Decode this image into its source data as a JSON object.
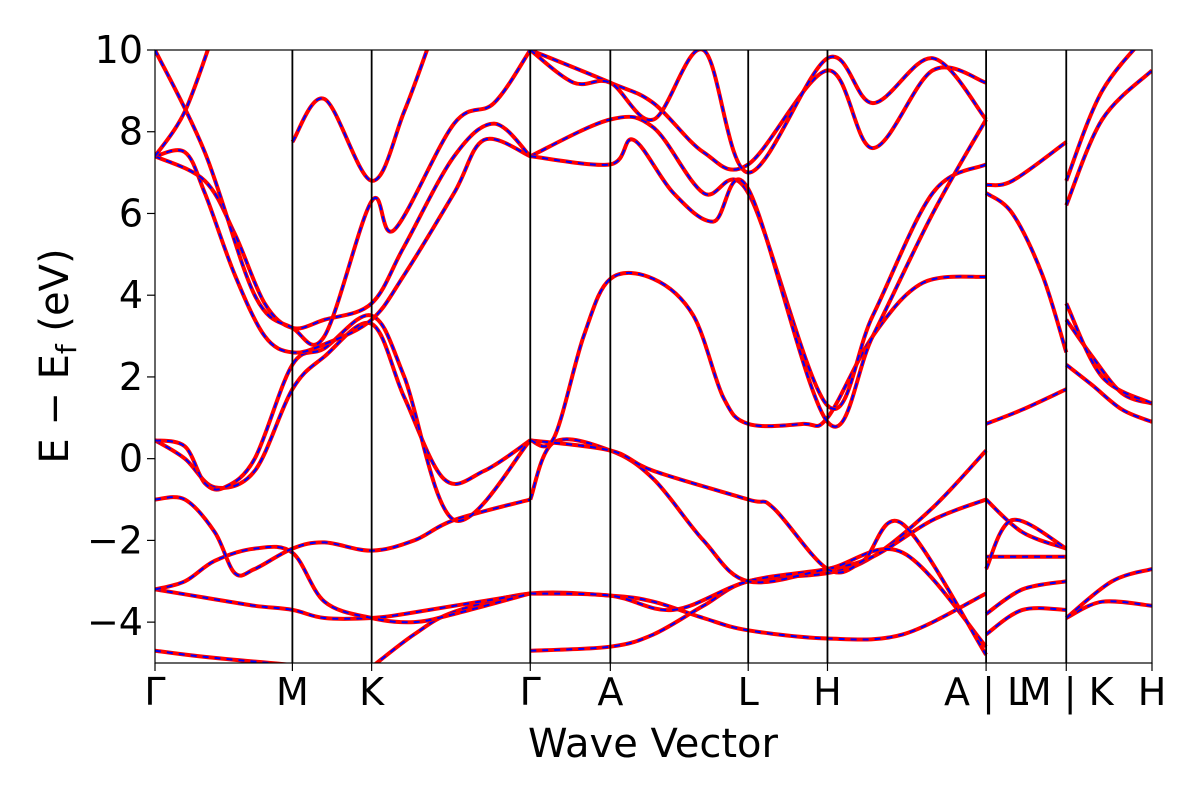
{
  "chart_data": {
    "type": "line",
    "title": "",
    "xlabel": "Wave Vector",
    "ylabel": "E − E",
    "ylabel_subscript": "f",
    "ylabel_unit": " (eV)",
    "ylim": [
      -5,
      10
    ],
    "xlim": [
      0,
      1
    ],
    "yticks": [
      -4,
      -2,
      0,
      2,
      4,
      6,
      8,
      10
    ],
    "ytick_labels": [
      "−4",
      "−2",
      "0",
      "2",
      "4",
      "6",
      "8",
      "10"
    ],
    "kpoints": [
      {
        "label": "Γ",
        "x": 0.0
      },
      {
        "label": "M",
        "x": 0.1378
      },
      {
        "label": "K",
        "x": 0.2173
      },
      {
        "label": "Γ",
        "x": 0.3764
      },
      {
        "label": "A",
        "x": 0.4567
      },
      {
        "label": "L",
        "x": 0.595
      },
      {
        "label": "H",
        "x": 0.6745
      },
      {
        "label": "A | L",
        "x": 0.8336
      },
      {
        "label": "M | K",
        "x": 0.914
      },
      {
        "label": "H",
        "x": 1.0
      }
    ],
    "segment_breaks": [
      0.8336,
      0.914
    ],
    "series_styles": [
      {
        "name": "band structure (solid)",
        "color": "#ff0000"
      },
      {
        "name": "band structure (dashed overlay)",
        "color": "#0000ff"
      }
    ],
    "bands": [
      {
        "name": "band-1",
        "segments": [
          [
            [
              0.0,
              -4.7
            ],
            [
              0.05,
              -4.85
            ],
            [
              0.1378,
              -5.05
            ]
          ],
          [
            [
              0.2173,
              -5.1
            ],
            [
              0.26,
              -4.3
            ],
            [
              0.3,
              -3.75
            ],
            [
              0.3764,
              -3.3
            ],
            [
              0.4567,
              -3.35
            ],
            [
              0.5,
              -3.5
            ],
            [
              0.55,
              -3.9
            ],
            [
              0.595,
              -4.2
            ],
            [
              0.6745,
              -4.4
            ],
            [
              0.75,
              -4.3
            ],
            [
              0.8336,
              -3.3
            ]
          ],
          [
            [
              0.8336,
              -3.8
            ],
            [
              0.87,
              -3.2
            ],
            [
              0.914,
              -3.0
            ]
          ],
          [
            [
              0.914,
              -3.9
            ],
            [
              0.95,
              -3.5
            ],
            [
              1.0,
              -3.6
            ]
          ]
        ]
      },
      {
        "name": "band-2",
        "segments": [
          [
            [
              0.0,
              -3.2
            ],
            [
              0.05,
              -3.4
            ],
            [
              0.1,
              -3.6
            ],
            [
              0.1378,
              -3.7
            ],
            [
              0.17,
              -3.9
            ],
            [
              0.2173,
              -3.9
            ],
            [
              0.25,
              -3.8
            ],
            [
              0.3,
              -3.6
            ],
            [
              0.3764,
              -3.3
            ]
          ],
          [
            [
              0.3764,
              -4.7
            ],
            [
              0.4567,
              -4.6
            ],
            [
              0.5,
              -4.3
            ],
            [
              0.55,
              -3.6
            ],
            [
              0.595,
              -3.0
            ],
            [
              0.6745,
              -2.8
            ],
            [
              0.72,
              -2.4
            ],
            [
              0.78,
              -1.2
            ],
            [
              0.8336,
              0.2
            ]
          ],
          [
            [
              0.8336,
              -4.3
            ],
            [
              0.87,
              -3.7
            ],
            [
              0.914,
              -3.7
            ]
          ],
          [
            [
              0.914,
              -3.9
            ],
            [
              0.96,
              -3.0
            ],
            [
              1.0,
              -2.7
            ]
          ]
        ]
      },
      {
        "name": "band-3",
        "segments": [
          [
            [
              0.0,
              -3.2
            ],
            [
              0.03,
              -3.0
            ],
            [
              0.06,
              -2.5
            ],
            [
              0.1,
              -2.2
            ],
            [
              0.1378,
              -2.3
            ],
            [
              0.17,
              -3.5
            ],
            [
              0.2173,
              -3.9
            ],
            [
              0.26,
              -4.0
            ],
            [
              0.3,
              -3.8
            ],
            [
              0.3764,
              -3.3
            ]
          ],
          [
            [
              0.3764,
              -3.3
            ],
            [
              0.4567,
              -3.35
            ],
            [
              0.52,
              -3.7
            ],
            [
              0.595,
              -3.0
            ],
            [
              0.6745,
              -2.7
            ],
            [
              0.72,
              -2.4
            ],
            [
              0.78,
              -1.5
            ],
            [
              0.8336,
              -1.0
            ]
          ],
          [
            [
              0.8336,
              -2.4
            ],
            [
              0.87,
              -2.4
            ],
            [
              0.914,
              -2.4
            ]
          ]
        ]
      },
      {
        "name": "band-4",
        "segments": [
          [
            [
              0.0,
              -1.0
            ],
            [
              0.03,
              -1.0
            ],
            [
              0.06,
              -1.8
            ],
            [
              0.08,
              -2.8
            ],
            [
              0.1,
              -2.7
            ],
            [
              0.1378,
              -2.2
            ],
            [
              0.17,
              -2.05
            ],
            [
              0.2173,
              -2.25
            ],
            [
              0.26,
              -2.0
            ],
            [
              0.3,
              -1.5
            ],
            [
              0.3764,
              -1.0
            ]
          ],
          [
            [
              0.3764,
              -1.0
            ],
            [
              0.4,
              0.4
            ],
            [
              0.4567,
              0.2
            ],
            [
              0.5,
              -0.5
            ],
            [
              0.55,
              -2.0
            ],
            [
              0.595,
              -3.0
            ],
            [
              0.6745,
              -2.7
            ],
            [
              0.75,
              -2.3
            ],
            [
              0.8336,
              -4.6
            ]
          ],
          [
            [
              0.8336,
              -1.0
            ],
            [
              0.87,
              -1.8
            ],
            [
              0.914,
              -2.2
            ]
          ]
        ]
      },
      {
        "name": "band-5",
        "segments": [
          [
            [
              0.0,
              0.45
            ],
            [
              0.03,
              0.0
            ],
            [
              0.06,
              -0.7
            ],
            [
              0.1,
              -0.3
            ],
            [
              0.1378,
              1.7
            ],
            [
              0.17,
              2.5
            ],
            [
              0.2173,
              3.3
            ],
            [
              0.25,
              1.5
            ],
            [
              0.29,
              -0.5
            ],
            [
              0.33,
              -0.3
            ],
            [
              0.3764,
              0.45
            ]
          ],
          [
            [
              0.3764,
              0.45
            ],
            [
              0.4567,
              0.2
            ],
            [
              0.5,
              -0.3
            ],
            [
              0.595,
              -1.0
            ],
            [
              0.62,
              -1.2
            ],
            [
              0.6745,
              -2.7
            ],
            [
              0.71,
              -2.5
            ],
            [
              0.75,
              -1.6
            ],
            [
              0.8336,
              -4.8
            ]
          ],
          [
            [
              0.8336,
              -2.7
            ],
            [
              0.86,
              -1.5
            ],
            [
              0.914,
              -2.2
            ]
          ],
          [
            [
              0.914,
              2.3
            ],
            [
              0.94,
              1.8
            ],
            [
              0.97,
              1.2
            ],
            [
              1.0,
              0.9
            ]
          ]
        ]
      },
      {
        "name": "band-6",
        "segments": [
          [
            [
              0.0,
              0.45
            ],
            [
              0.03,
              0.3
            ],
            [
              0.05,
              -0.6
            ],
            [
              0.07,
              -0.7
            ],
            [
              0.1,
              0.0
            ],
            [
              0.1378,
              2.3
            ],
            [
              0.17,
              2.7
            ],
            [
              0.2173,
              3.5
            ],
            [
              0.25,
              2.0
            ],
            [
              0.3,
              -1.5
            ],
            [
              0.3764,
              0.45
            ]
          ],
          [
            [
              0.3764,
              0.45
            ],
            [
              0.4,
              0.5
            ],
            [
              0.43,
              3.0
            ],
            [
              0.4567,
              4.4
            ],
            [
              0.5,
              4.4
            ],
            [
              0.54,
              3.5
            ],
            [
              0.57,
              1.5
            ],
            [
              0.595,
              0.85
            ],
            [
              0.65,
              0.85
            ],
            [
              0.6745,
              1.0
            ],
            [
              0.72,
              3.0
            ],
            [
              0.77,
              4.3
            ],
            [
              0.8336,
              4.45
            ]
          ],
          [
            [
              0.8336,
              0.85
            ],
            [
              0.87,
              1.2
            ],
            [
              0.914,
              1.7
            ]
          ],
          [
            [
              0.914,
              3.4
            ],
            [
              0.94,
              2.5
            ],
            [
              0.97,
              1.6
            ],
            [
              1.0,
              1.35
            ]
          ]
        ]
      },
      {
        "name": "band-7",
        "segments": [
          [
            [
              0.0,
              7.4
            ],
            [
              0.03,
              7.5
            ],
            [
              0.05,
              6.5
            ],
            [
              0.08,
              4.5
            ],
            [
              0.11,
              3.0
            ],
            [
              0.1378,
              2.6
            ],
            [
              0.17,
              2.8
            ],
            [
              0.2173,
              3.4
            ],
            [
              0.25,
              4.5
            ],
            [
              0.3,
              6.5
            ],
            [
              0.33,
              7.8
            ],
            [
              0.3764,
              7.4
            ]
          ],
          [
            [
              0.3764,
              7.4
            ],
            [
              0.4567,
              8.3
            ],
            [
              0.5,
              8.1
            ],
            [
              0.55,
              6.5
            ],
            [
              0.595,
              6.5
            ],
            [
              0.6745,
              1.3
            ],
            [
              0.72,
              3.5
            ],
            [
              0.78,
              6.5
            ],
            [
              0.8336,
              7.2
            ]
          ],
          [
            [
              0.8336,
              6.5
            ],
            [
              0.86,
              6.0
            ],
            [
              0.89,
              4.5
            ],
            [
              0.914,
              2.6
            ]
          ],
          [
            [
              0.914,
              3.8
            ],
            [
              0.95,
              2.0
            ],
            [
              1.0,
              1.35
            ]
          ]
        ]
      },
      {
        "name": "band-8",
        "segments": [
          [
            [
              0.0,
              7.4
            ],
            [
              0.05,
              6.8
            ],
            [
              0.08,
              5.5
            ],
            [
              0.11,
              3.8
            ],
            [
              0.1378,
              3.2
            ],
            [
              0.17,
              3.4
            ],
            [
              0.2173,
              3.8
            ],
            [
              0.25,
              5.2
            ],
            [
              0.3,
              7.4
            ],
            [
              0.34,
              8.2
            ],
            [
              0.3764,
              7.4
            ]
          ],
          [
            [
              0.3764,
              7.4
            ],
            [
              0.4567,
              7.2
            ],
            [
              0.48,
              7.8
            ],
            [
              0.52,
              6.5
            ],
            [
              0.56,
              5.8
            ],
            [
              0.595,
              6.6
            ],
            [
              0.6745,
              0.9
            ],
            [
              0.72,
              3.0
            ],
            [
              0.78,
              6.0
            ],
            [
              0.8336,
              8.3
            ]
          ],
          [
            [
              0.8336,
              6.7
            ],
            [
              0.86,
              6.8
            ],
            [
              0.914,
              7.75
            ]
          ],
          [
            [
              0.914,
              6.2
            ],
            [
              0.95,
              8.3
            ],
            [
              1.0,
              9.5
            ]
          ]
        ]
      },
      {
        "name": "band-9",
        "segments": [
          [
            [
              0.0,
              10.0
            ],
            [
              0.05,
              7.5
            ],
            [
              0.1,
              4.0
            ],
            [
              0.1378,
              3.2
            ],
            [
              0.17,
              3.0
            ],
            [
              0.2173,
              6.3
            ],
            [
              0.24,
              5.6
            ],
            [
              0.3,
              8.2
            ],
            [
              0.34,
              8.7
            ],
            [
              0.3764,
              10.0
            ]
          ],
          [
            [
              0.3764,
              10.0
            ],
            [
              0.4567,
              9.2
            ],
            [
              0.5,
              8.7
            ],
            [
              0.55,
              7.5
            ],
            [
              0.595,
              7.2
            ],
            [
              0.6745,
              9.5
            ],
            [
              0.72,
              7.6
            ],
            [
              0.78,
              9.5
            ],
            [
              0.8336,
              9.2
            ]
          ],
          [
            [
              0.914,
              6.8
            ],
            [
              0.95,
              9.0
            ],
            [
              1.0,
              10.5
            ]
          ]
        ]
      },
      {
        "name": "band-10",
        "segments": [
          [
            [
              0.0,
              7.4
            ],
            [
              0.03,
              8.5
            ],
            [
              0.06,
              10.5
            ]
          ],
          [
            [
              0.1378,
              7.75
            ],
            [
              0.17,
              8.8
            ],
            [
              0.2173,
              6.8
            ],
            [
              0.25,
              8.5
            ],
            [
              0.28,
              10.5
            ]
          ],
          [
            [
              0.3764,
              10.0
            ],
            [
              0.42,
              9.2
            ],
            [
              0.4567,
              9.2
            ],
            [
              0.5,
              8.3
            ],
            [
              0.55,
              10.0
            ],
            [
              0.595,
              7.0
            ],
            [
              0.6745,
              9.8
            ],
            [
              0.72,
              8.7
            ],
            [
              0.78,
              9.8
            ],
            [
              0.8336,
              8.3
            ]
          ]
        ]
      }
    ]
  }
}
